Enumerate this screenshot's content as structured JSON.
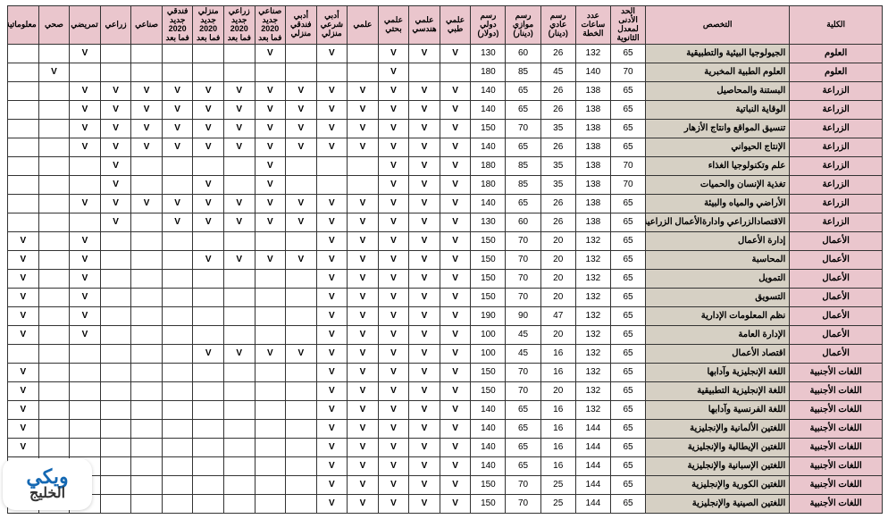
{
  "colors": {
    "header_bg": "#eac6cd",
    "spec_bg": "#d6d0c4",
    "border": "#333333",
    "logo_blue": "#1468b3",
    "logo_dark": "#343434"
  },
  "logo": {
    "line1": "ويكي",
    "line2": "الخليج"
  },
  "headers": [
    "الكلية",
    "التخصص",
    "الحد الأدنى لمعدل الثانوية",
    "عدد ساعات الخطة",
    "رسم عادي (دينار)",
    "رسم موازي (دينار)",
    "رسم دولي (دولار)",
    "علمي طبي",
    "علمي هندسي",
    "علمي بحتي",
    "علمي",
    "أدبي شرعي منزلي",
    "أدبي فندقي منزلي",
    "صناعي جديد 2020 فما بعد",
    "زراعي جديد 2020 فما بعد",
    "منزلي جديد 2020 فما بعد",
    "فندقي جديد 2020 فما بعد",
    "صناعي",
    "زراعي",
    "تمريضي",
    "صحي",
    "معلوماتية"
  ],
  "rows": [
    {
      "college": "العلوم",
      "spec": "الجيولوجيا البيئية والتطبيقية",
      "min": "65",
      "hrs": "132",
      "n": "26",
      "p": "60",
      "d": "130",
      "c": [
        "V",
        "V",
        "V",
        "",
        "V",
        "",
        "V",
        "",
        "",
        "",
        "",
        "",
        "V",
        "",
        ""
      ]
    },
    {
      "college": "العلوم",
      "spec": "العلوم الطبية المخبرية",
      "min": "70",
      "hrs": "140",
      "n": "45",
      "p": "85",
      "d": "180",
      "c": [
        "",
        "",
        "V",
        "",
        "",
        "",
        "",
        "",
        "",
        "",
        "",
        "",
        "",
        "V",
        ""
      ]
    },
    {
      "college": "الزراعة",
      "spec": "البستنة والمحاصيل",
      "min": "65",
      "hrs": "138",
      "n": "26",
      "p": "65",
      "d": "140",
      "c": [
        "V",
        "V",
        "V",
        "V",
        "V",
        "V",
        "V",
        "V",
        "V",
        "V",
        "V",
        "V",
        "V",
        "",
        ""
      ]
    },
    {
      "college": "الزراعة",
      "spec": "الوقاية النباتية",
      "min": "65",
      "hrs": "138",
      "n": "26",
      "p": "65",
      "d": "140",
      "c": [
        "V",
        "V",
        "V",
        "V",
        "V",
        "V",
        "V",
        "V",
        "V",
        "V",
        "V",
        "V",
        "V",
        "",
        ""
      ]
    },
    {
      "college": "الزراعة",
      "spec": "تنسيق المواقع وانتاج الأزهار",
      "min": "65",
      "hrs": "138",
      "n": "35",
      "p": "70",
      "d": "150",
      "c": [
        "V",
        "V",
        "V",
        "V",
        "V",
        "V",
        "V",
        "V",
        "V",
        "V",
        "V",
        "V",
        "V",
        "",
        ""
      ]
    },
    {
      "college": "الزراعة",
      "spec": "الإنتاج الحيواني",
      "min": "65",
      "hrs": "138",
      "n": "26",
      "p": "65",
      "d": "140",
      "c": [
        "V",
        "V",
        "V",
        "V",
        "V",
        "V",
        "V",
        "V",
        "V",
        "V",
        "V",
        "V",
        "V",
        "",
        ""
      ]
    },
    {
      "college": "الزراعة",
      "spec": "علم وتكنولوجيا الغذاء",
      "min": "70",
      "hrs": "138",
      "n": "35",
      "p": "85",
      "d": "180",
      "c": [
        "V",
        "V",
        "V",
        "",
        "",
        "",
        "V",
        "",
        "",
        "",
        "",
        "V",
        "",
        "",
        ""
      ]
    },
    {
      "college": "الزراعة",
      "spec": "تغذية الإنسان والحميات",
      "min": "70",
      "hrs": "138",
      "n": "35",
      "p": "85",
      "d": "180",
      "c": [
        "V",
        "V",
        "V",
        "",
        "",
        "",
        "V",
        "",
        "V",
        "",
        "",
        "V",
        "",
        "",
        ""
      ]
    },
    {
      "college": "الزراعة",
      "spec": "الأراضي والمياه والبيئة",
      "min": "65",
      "hrs": "138",
      "n": "26",
      "p": "65",
      "d": "140",
      "c": [
        "V",
        "V",
        "V",
        "V",
        "V",
        "V",
        "V",
        "V",
        "V",
        "V",
        "V",
        "V",
        "V",
        "",
        ""
      ]
    },
    {
      "college": "الزراعة",
      "spec": "الاقتصادالزراعي وادارةالأعمال الزراعية",
      "min": "65",
      "hrs": "138",
      "n": "26",
      "p": "60",
      "d": "130",
      "c": [
        "V",
        "V",
        "V",
        "V",
        "V",
        "V",
        "V",
        "V",
        "V",
        "V",
        "",
        "V",
        "",
        "",
        ""
      ]
    },
    {
      "college": "الأعمال",
      "spec": "إدارة الأعمال",
      "min": "65",
      "hrs": "132",
      "n": "20",
      "p": "70",
      "d": "150",
      "c": [
        "V",
        "V",
        "V",
        "V",
        "V",
        "",
        "",
        "",
        "",
        "",
        "",
        "",
        "V",
        "",
        "V"
      ]
    },
    {
      "college": "الأعمال",
      "spec": "المحاسبة",
      "min": "65",
      "hrs": "132",
      "n": "20",
      "p": "70",
      "d": "150",
      "c": [
        "V",
        "V",
        "V",
        "V",
        "V",
        "V",
        "V",
        "V",
        "V",
        "",
        "",
        "",
        "V",
        "",
        "V"
      ]
    },
    {
      "college": "الأعمال",
      "spec": "التمويل",
      "min": "65",
      "hrs": "132",
      "n": "20",
      "p": "70",
      "d": "150",
      "c": [
        "V",
        "V",
        "V",
        "V",
        "V",
        "",
        "",
        "",
        "",
        "",
        "",
        "",
        "V",
        "",
        "V"
      ]
    },
    {
      "college": "الأعمال",
      "spec": "التسويق",
      "min": "65",
      "hrs": "132",
      "n": "20",
      "p": "70",
      "d": "150",
      "c": [
        "V",
        "V",
        "V",
        "V",
        "V",
        "",
        "",
        "",
        "",
        "",
        "",
        "",
        "V",
        "",
        "V"
      ]
    },
    {
      "college": "الأعمال",
      "spec": "نظم المعلومات الإدارية",
      "min": "65",
      "hrs": "132",
      "n": "47",
      "p": "90",
      "d": "190",
      "c": [
        "V",
        "V",
        "V",
        "V",
        "V",
        "",
        "",
        "",
        "",
        "",
        "",
        "",
        "V",
        "",
        "V"
      ]
    },
    {
      "college": "الأعمال",
      "spec": "الإدارة العامة",
      "min": "65",
      "hrs": "132",
      "n": "20",
      "p": "45",
      "d": "100",
      "c": [
        "V",
        "V",
        "V",
        "V",
        "V",
        "",
        "",
        "",
        "",
        "",
        "",
        "",
        "V",
        "",
        "V"
      ]
    },
    {
      "college": "الأعمال",
      "spec": "اقتصاد الأعمال",
      "min": "65",
      "hrs": "132",
      "n": "16",
      "p": "45",
      "d": "100",
      "c": [
        "V",
        "V",
        "V",
        "V",
        "V",
        "V",
        "V",
        "V",
        "V",
        "",
        "",
        "",
        "",
        "",
        ""
      ]
    },
    {
      "college": "اللغات الأجنبية",
      "spec": "اللغة الإنجليزية وآدابها",
      "min": "65",
      "hrs": "132",
      "n": "16",
      "p": "70",
      "d": "150",
      "c": [
        "V",
        "V",
        "V",
        "V",
        "V",
        "",
        "",
        "",
        "",
        "",
        "",
        "",
        "",
        "",
        "V"
      ]
    },
    {
      "college": "اللغات الأجنبية",
      "spec": "اللغة الإنجليزية التطبيقية",
      "min": "65",
      "hrs": "132",
      "n": "20",
      "p": "70",
      "d": "150",
      "c": [
        "V",
        "V",
        "V",
        "V",
        "V",
        "",
        "",
        "",
        "",
        "",
        "",
        "",
        "",
        "",
        "V"
      ]
    },
    {
      "college": "اللغات الأجنبية",
      "spec": "اللغة الفرنسية وآدابها",
      "min": "65",
      "hrs": "132",
      "n": "16",
      "p": "65",
      "d": "140",
      "c": [
        "V",
        "V",
        "V",
        "V",
        "V",
        "",
        "",
        "",
        "",
        "",
        "",
        "",
        "",
        "",
        "V"
      ]
    },
    {
      "college": "اللغات الأجنبية",
      "spec": "اللغتين الألمانية والإنجليزية",
      "min": "65",
      "hrs": "144",
      "n": "16",
      "p": "65",
      "d": "140",
      "c": [
        "V",
        "V",
        "V",
        "V",
        "V",
        "",
        "",
        "",
        "",
        "",
        "",
        "",
        "",
        "",
        "V"
      ]
    },
    {
      "college": "اللغات الأجنبية",
      "spec": "اللغتين الإيطالية والإنجليزية",
      "min": "65",
      "hrs": "144",
      "n": "16",
      "p": "65",
      "d": "140",
      "c": [
        "V",
        "V",
        "V",
        "V",
        "V",
        "",
        "",
        "",
        "",
        "",
        "",
        "",
        "",
        "",
        "V"
      ]
    },
    {
      "college": "اللغات الأجنبية",
      "spec": "اللغتين الإسبانية والإنجليزية",
      "min": "65",
      "hrs": "144",
      "n": "16",
      "p": "65",
      "d": "140",
      "c": [
        "V",
        "V",
        "V",
        "V",
        "V",
        "",
        "",
        "",
        "",
        "",
        "",
        "",
        "",
        "",
        "V"
      ]
    },
    {
      "college": "اللغات الأجنبية",
      "spec": "اللغتين الكورية والإنجليزية",
      "min": "65",
      "hrs": "144",
      "n": "25",
      "p": "70",
      "d": "150",
      "c": [
        "V",
        "V",
        "V",
        "V",
        "V",
        "",
        "",
        "",
        "",
        "",
        "",
        "",
        "",
        "",
        "V"
      ]
    },
    {
      "college": "اللغات الأجنبية",
      "spec": "اللغتين الصينية والإنجليزية",
      "min": "65",
      "hrs": "144",
      "n": "25",
      "p": "70",
      "d": "150",
      "c": [
        "V",
        "V",
        "V",
        "V",
        "V",
        "",
        "",
        "",
        "",
        "",
        "",
        "",
        "",
        "",
        "V"
      ]
    }
  ]
}
